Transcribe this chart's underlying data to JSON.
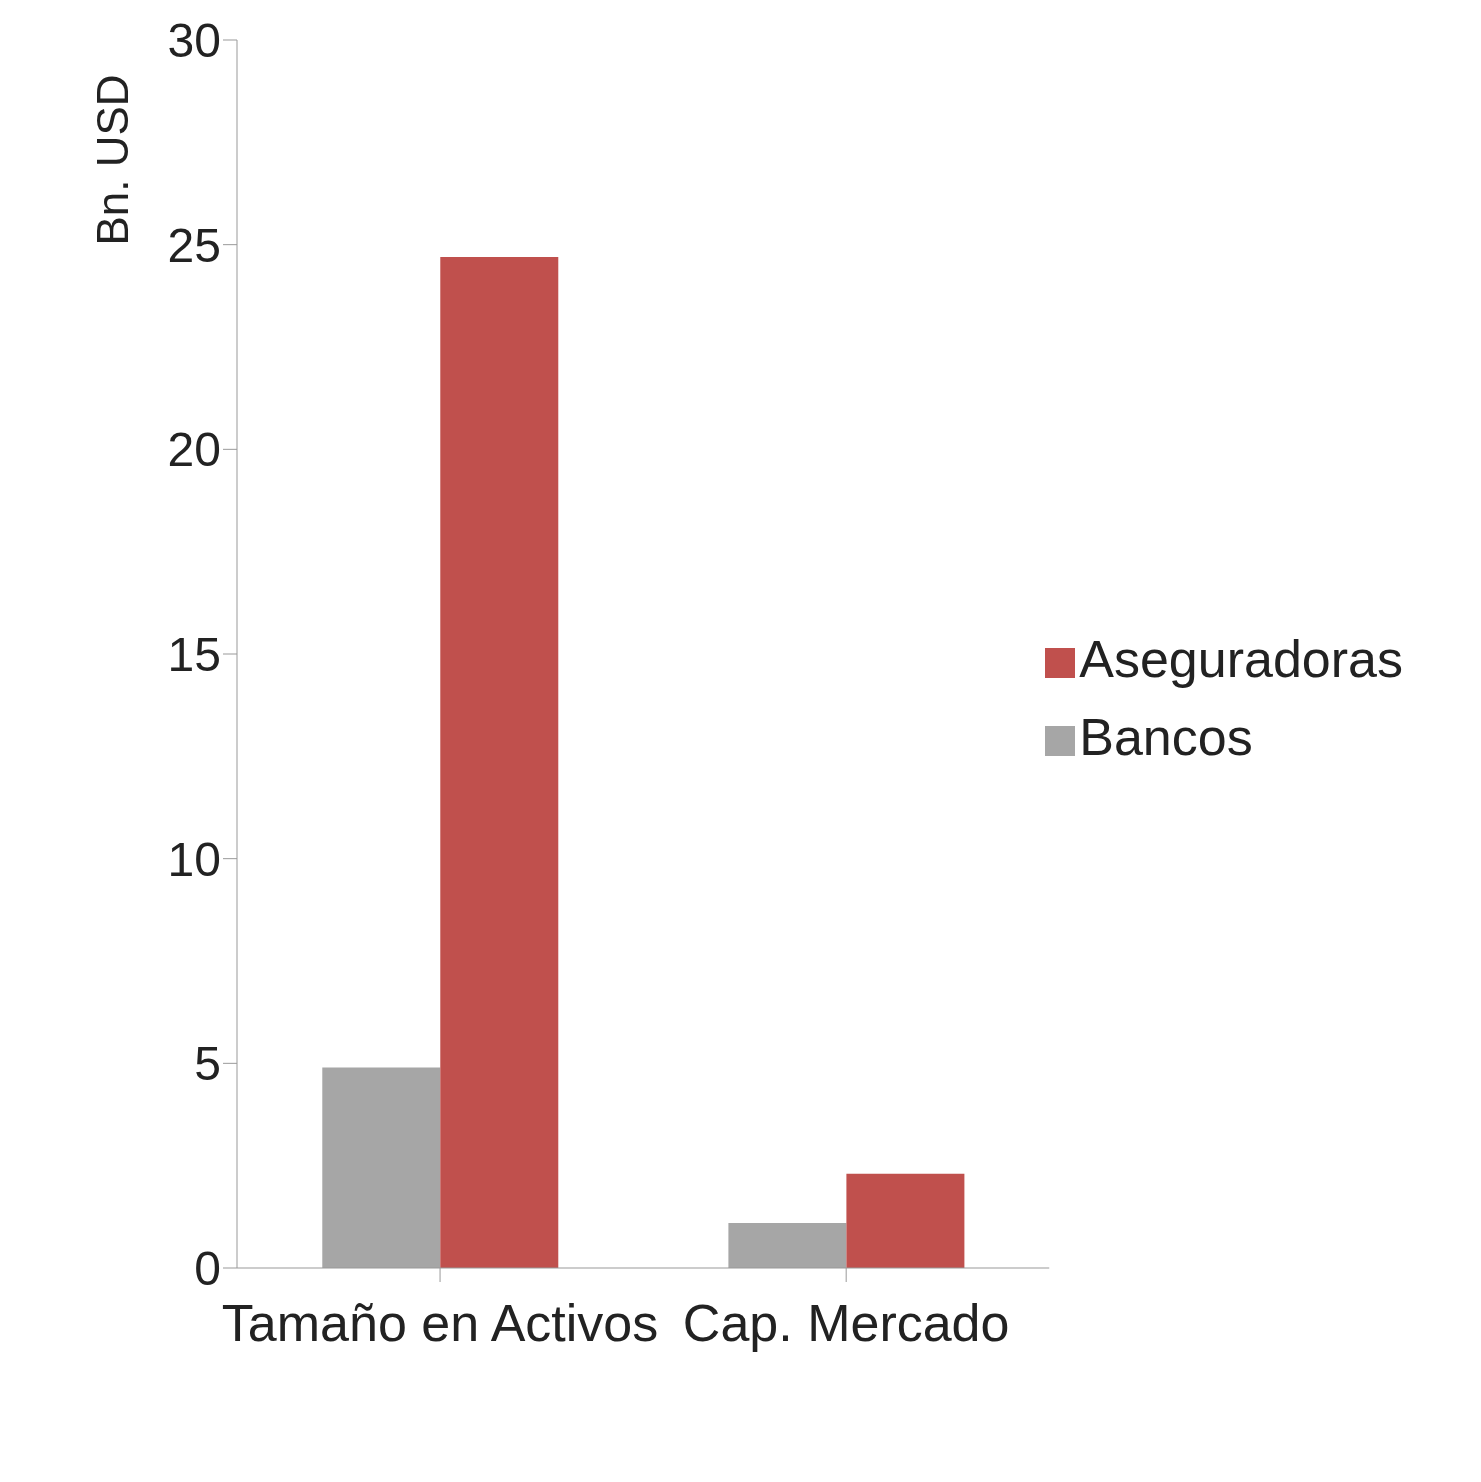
{
  "chart_data": {
    "type": "bar",
    "ylabel": "Bn. USD",
    "categories": [
      "Tamaño en Activos",
      "Cap. Mercado"
    ],
    "series": [
      {
        "name": "Bancos",
        "color": "#a6a6a6",
        "values": [
          4.9,
          1.1
        ]
      },
      {
        "name": "Aseguradoras",
        "color": "#c0504d",
        "values": [
          24.7,
          2.3
        ]
      }
    ],
    "ylim": [
      0,
      30
    ],
    "yticks": [
      0,
      5,
      10,
      15,
      20,
      25,
      30
    ],
    "grid": false,
    "legend": "right"
  }
}
